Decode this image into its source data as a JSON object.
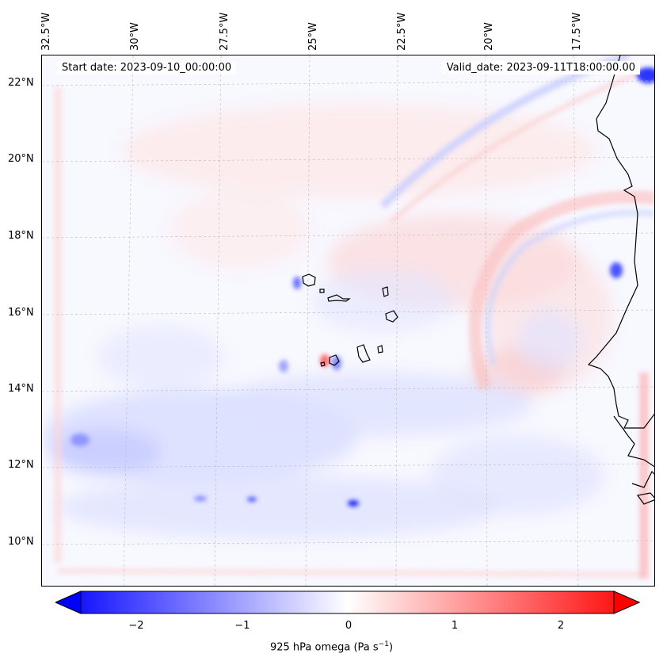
{
  "map": {
    "start_date_text": "Start date: 2023-09-10_00:00:00",
    "valid_date_text": "Valid_date: 2023-09-11T18:00:00.00",
    "lon_labels": [
      "32.5°W",
      "30°W",
      "27.5°W",
      "25°W",
      "22.5°W",
      "20°W",
      "17.5°W"
    ],
    "lat_labels": [
      "22°N",
      "20°N",
      "18°N",
      "16°N",
      "14°N",
      "12°N",
      "10°N"
    ],
    "background_color": "#f8f8ff",
    "coastline_color": "#000000"
  },
  "colorbar": {
    "ticks": [
      "−2",
      "−1",
      "0",
      "1",
      "2"
    ],
    "label_text": "925 hPa omega (Pa s",
    "label_exp": "−1",
    "label_close": ")",
    "min_color": "#0000ff",
    "mid_color": "#ffffff",
    "max_color": "#ff0000"
  }
}
